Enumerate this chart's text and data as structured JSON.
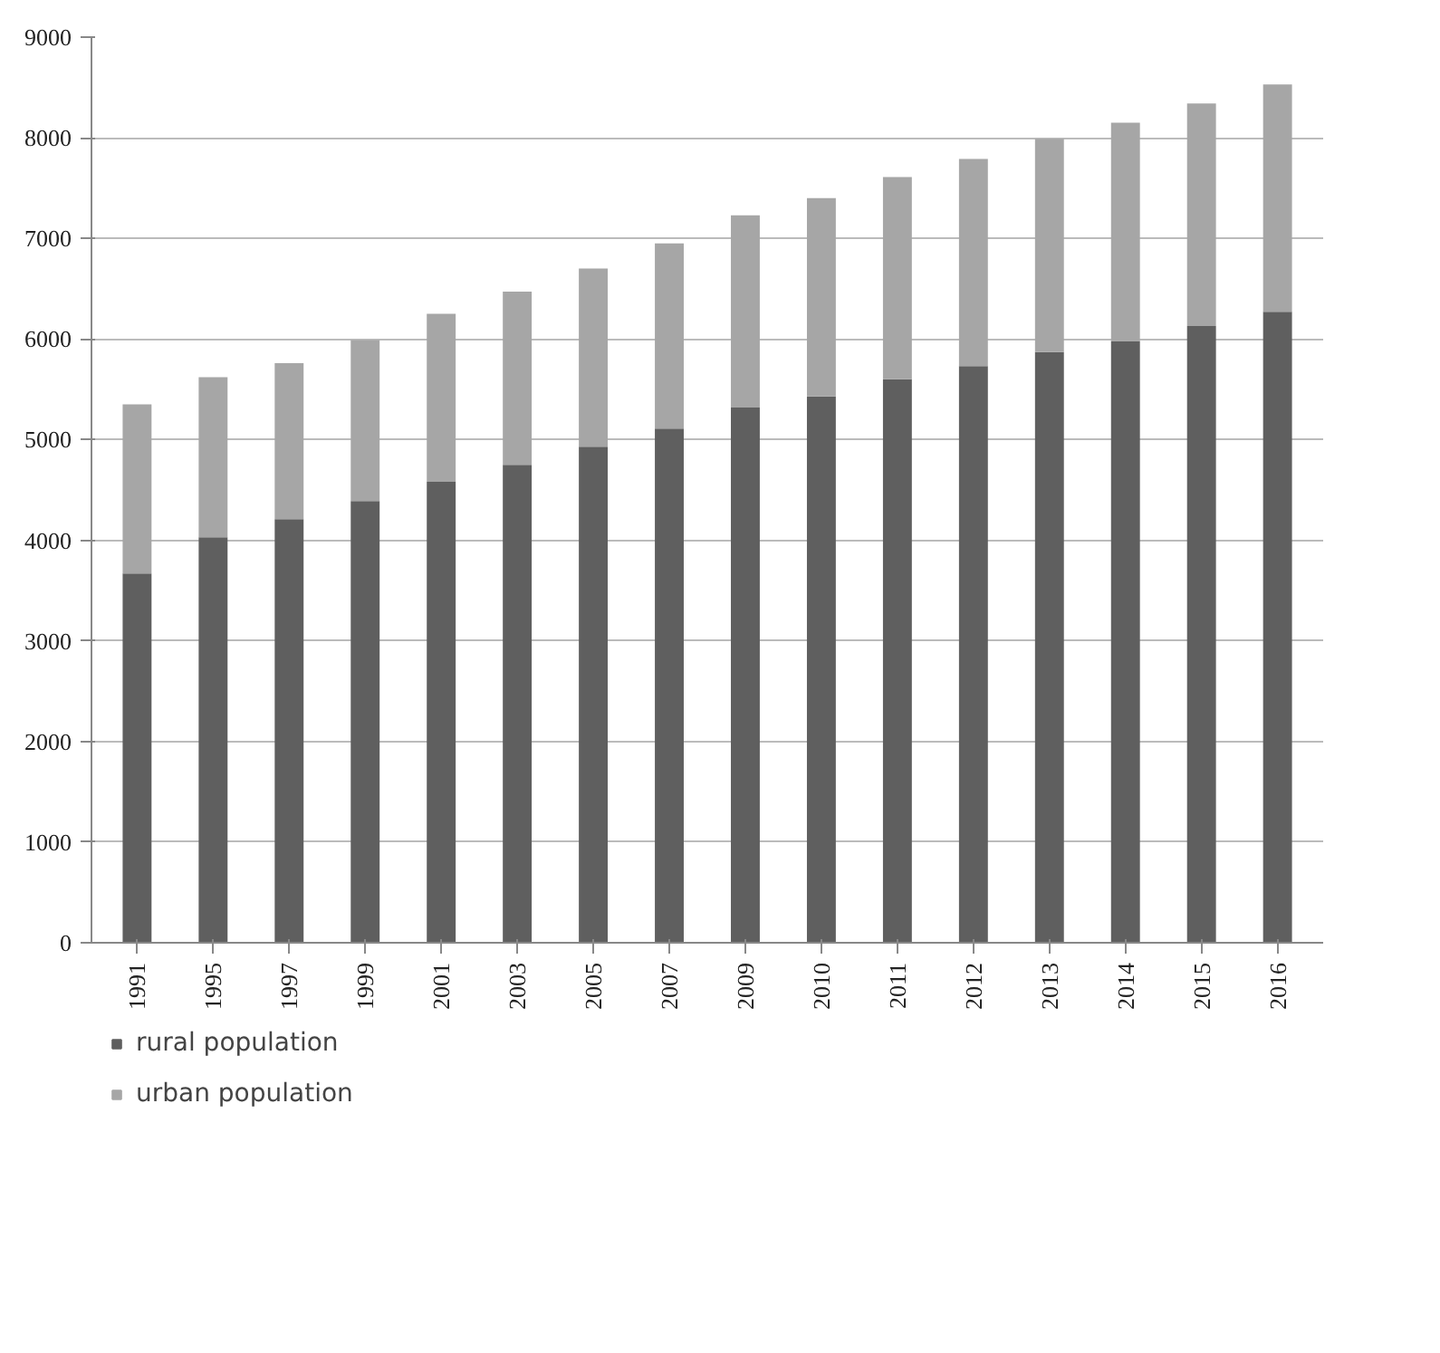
{
  "chart_data": {
    "type": "bar",
    "stacked": true,
    "categories": [
      "1991",
      "1995",
      "1997",
      "1999",
      "2001",
      "2003",
      "2005",
      "2007",
      "2009",
      "2010",
      "2011",
      "2012",
      "2013",
      "2014",
      "2015",
      "2016"
    ],
    "series": [
      {
        "name": "rural population",
        "color": "#5f5f5f",
        "values": [
          3670,
          4030,
          4210,
          4390,
          4580,
          4750,
          4930,
          5110,
          5320,
          5430,
          5600,
          5730,
          5870,
          5980,
          6130,
          6270
        ]
      },
      {
        "name": "urban population",
        "color": "#a6a6a6",
        "values": [
          1680,
          1590,
          1550,
          1600,
          1670,
          1720,
          1770,
          1840,
          1910,
          1970,
          2010,
          2060,
          2120,
          2170,
          2210,
          2260
        ]
      }
    ],
    "ylim": [
      0,
      9000
    ],
    "yticks": [
      0,
      1000,
      2000,
      3000,
      4000,
      5000,
      6000,
      7000,
      8000,
      9000
    ],
    "grid": "y",
    "legend": "bottom"
  }
}
